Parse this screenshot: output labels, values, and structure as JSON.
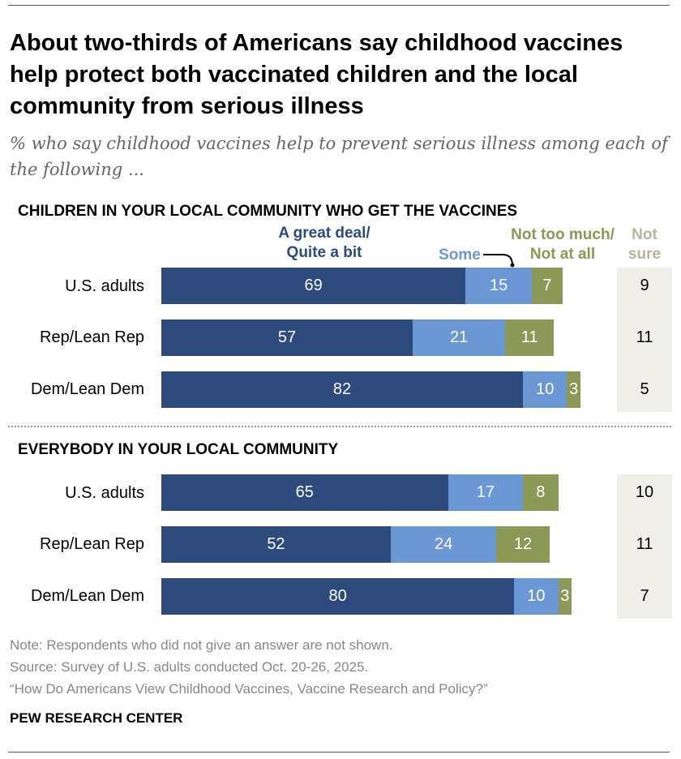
{
  "title": "About two-thirds of Americans say childhood vaccines help protect both vaccinated children and the local community from serious illness",
  "subtitle": "% who say childhood vaccines help to prevent serious illness among each of the following ...",
  "legend": {
    "great_deal_line1": "A great deal/",
    "great_deal_line2": "Quite a bit",
    "some": "Some",
    "not_too_much_line1": "Not too much/",
    "not_too_much_line2": "Not at all",
    "not_sure_line1": "Not",
    "not_sure_line2": "sure"
  },
  "colors": {
    "great_deal": "#2e4a7d",
    "some": "#6b98d4",
    "not_too_much": "#8c9856",
    "not_sure_text": "#b9b49c",
    "not_sure_bg": "#f0eee8"
  },
  "chart_data": {
    "type": "bar",
    "orientation": "horizontal",
    "stacked": true,
    "categories": [
      "U.S. adults",
      "Rep/Lean Rep",
      "Dem/Lean Dem"
    ],
    "panels": [
      {
        "title": "CHILDREN IN YOUR LOCAL COMMUNITY WHO GET THE VACCINES",
        "series": [
          {
            "name": "A great deal/ Quite a bit",
            "values": [
              69,
              57,
              82
            ]
          },
          {
            "name": "Some",
            "values": [
              15,
              21,
              10
            ]
          },
          {
            "name": "Not too much/ Not at all",
            "values": [
              7,
              11,
              3
            ]
          },
          {
            "name": "Not sure",
            "values": [
              9,
              11,
              5
            ]
          }
        ]
      },
      {
        "title": "EVERYBODY IN YOUR LOCAL COMMUNITY",
        "series": [
          {
            "name": "A great deal/ Quite a bit",
            "values": [
              65,
              52,
              80
            ]
          },
          {
            "name": "Some",
            "values": [
              17,
              24,
              10
            ]
          },
          {
            "name": "Not too much/ Not at all",
            "values": [
              8,
              12,
              3
            ]
          },
          {
            "name": "Not sure",
            "values": [
              10,
              11,
              7
            ]
          }
        ]
      }
    ]
  },
  "footer": {
    "note": "Note: Respondents who did not give an answer are not shown.",
    "source": "Source: Survey of U.S. adults conducted Oct. 20-26, 2025.",
    "report": "“How Do Americans View Childhood Vaccines, Vaccine Research and Policy?”",
    "brand": "PEW RESEARCH CENTER"
  }
}
